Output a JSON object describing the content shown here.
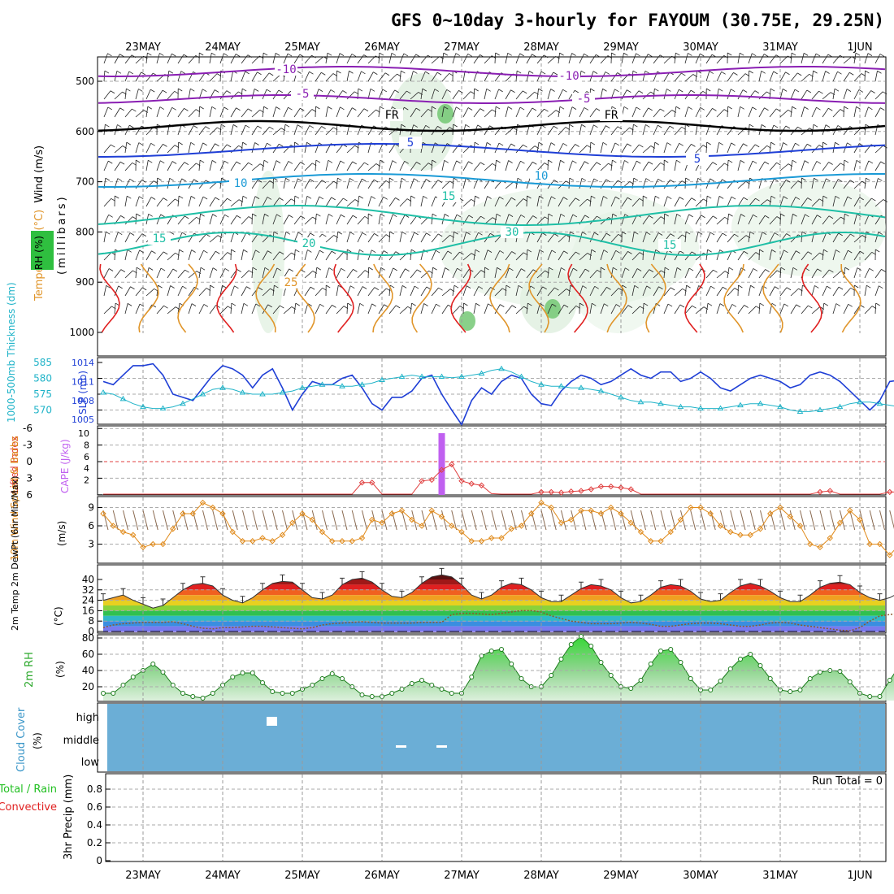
{
  "title": "GFS 0~10day 3-hourly for FAYOUM (30.75E, 29.25N)",
  "dates": [
    "23MAY",
    "24MAY",
    "25MAY",
    "26MAY",
    "27MAY",
    "28MAY",
    "29MAY",
    "30MAY",
    "31MAY",
    "1JUN"
  ],
  "colors": {
    "purple": "#8a1fb3",
    "black": "#000000",
    "blue": "#1f3fd6",
    "sky": "#1a9ad6",
    "teal": "#1fbfa6",
    "green": "#22b35a",
    "orange": "#e0952a",
    "red": "#e02020",
    "rh_light": "#e2f1e2",
    "rh_dark": "#6cc46c",
    "slp": "#1f3fd6",
    "thick": "#1fb3c8",
    "cape": "#c060f0",
    "li": "#e04040",
    "wind10": "#e08a1a",
    "dew": "#8b5a2b",
    "rh2m": "#2ca82c",
    "cloud": "#6baed6",
    "precip_total": "#22c022",
    "precip_conv": "#e02020"
  },
  "panels": {
    "profile": {
      "label_wind": "Wind (m/s)",
      "label_temp": "Temperature (°C)",
      "label_rh": "RH (%)",
      "label_mb": "(millibars)",
      "ticks": [
        "500",
        "600",
        "700",
        "800",
        "900",
        "1000"
      ],
      "contour_labels": [
        "-10",
        "-5",
        "FR",
        "5",
        "10",
        "15",
        "20",
        "25",
        "30"
      ]
    },
    "slp": {
      "label_thick": "1000-500mb Thickness (dm)",
      "label_slp": "SLP (mb)",
      "left_ticks": [
        "585",
        "580",
        "575",
        "570"
      ],
      "right_ticks": [
        "1014",
        "1011",
        "1008",
        "1005"
      ]
    },
    "cape": {
      "label_li": "Lifted Index",
      "label_cape": "CAPE (J/kg)",
      "li_ticks": [
        "-6",
        "-3",
        "0",
        "3",
        "6"
      ],
      "cape_ticks": [
        "10",
        "8",
        "6",
        "4",
        "2"
      ]
    },
    "wind10": {
      "label": "10m Wind Speed & Barbs",
      "unit": "(m/s)",
      "ticks": [
        "9",
        "6",
        "3"
      ]
    },
    "temp": {
      "label": "2m Temp 2m DewPt (6hr Min/Max)",
      "unit": "(°C)",
      "ticks": [
        "40",
        "32",
        "24",
        "16",
        "8",
        "0"
      ]
    },
    "rh": {
      "label": "2m RH",
      "unit": "(%)",
      "ticks": [
        "80",
        "60",
        "40",
        "20"
      ]
    },
    "cloud": {
      "label": "Cloud Cover",
      "unit": "(%)",
      "levels": [
        "high",
        "middle",
        "low"
      ]
    },
    "precip": {
      "label_total": "Total / Rain",
      "label_conv": "Convective",
      "label_precip": "3hr Precip (mm)",
      "ticks": [
        "0.8",
        "0.6",
        "0.4",
        "0.2",
        "0"
      ],
      "run_total": "Run Total = 0"
    }
  },
  "chart_data": [
    {
      "type": "line",
      "panel": "slp",
      "x_unit": "3-hourly steps from 22 May 12Z",
      "series": [
        {
          "name": "SLP (mb)",
          "values": [
            1011,
            1010.5,
            1012,
            1013.5,
            1013.5,
            1013.8,
            1012,
            1009,
            1008.5,
            1008,
            1010,
            1012,
            1013.5,
            1013,
            1012,
            1010,
            1012,
            1013,
            1010,
            1006.5,
            1009,
            1011,
            1010.5,
            1010.5,
            1011.5,
            1012,
            1010,
            1007.5,
            1006.5,
            1008.5,
            1008.5,
            1009.5,
            1011.5,
            1012,
            1009,
            1006.5,
            1004.2,
            1008,
            1010,
            1009,
            1011,
            1012,
            1011.5,
            1009,
            1007.5,
            1007.2,
            1009.5,
            1011,
            1012,
            1011.5,
            1010.5,
            1011,
            1012,
            1013,
            1012,
            1011.5,
            1012.5,
            1012.5,
            1011,
            1011.5,
            1012.5,
            1011.5,
            1010,
            1009.5,
            1010.5,
            1011.5,
            1012,
            1011.5,
            1011,
            1010,
            1010.5,
            1012,
            1012.5,
            1012,
            1011,
            1009.5,
            1008,
            1006.5,
            1008,
            1011,
            1011.2,
            1011.4,
            1012.3
          ]
        },
        {
          "name": "1000-500mb Thickness (dm)",
          "values": [
            575.5,
            575,
            573.5,
            572,
            571,
            570.5,
            570.5,
            571,
            572,
            573.5,
            575,
            576.5,
            577,
            576.5,
            575.5,
            575,
            575,
            575,
            575.5,
            576,
            577,
            577.5,
            578,
            578,
            577.5,
            577.5,
            578,
            578.5,
            579.5,
            580,
            580.5,
            581,
            580.5,
            580.5,
            580.5,
            580.2,
            580.5,
            581,
            581.5,
            582.5,
            583,
            582,
            580.5,
            579,
            578,
            577.5,
            577.5,
            577,
            577,
            576.5,
            576,
            575,
            574,
            573,
            572.5,
            572.5,
            572,
            571.5,
            571,
            571,
            570.5,
            570.5,
            570.5,
            571,
            571.5,
            572,
            572,
            571.5,
            571,
            570,
            569.5,
            569.5,
            570,
            570.5,
            571,
            572,
            572.5,
            572.5,
            572,
            571.5,
            571,
            571.2,
            572
          ]
        }
      ]
    },
    {
      "type": "bar",
      "panel": "cape",
      "series": [
        {
          "name": "CAPE (J/kg)",
          "values": [
            {
              "step": 34,
              "value": 10
            }
          ]
        },
        {
          "name": "Lifted Index",
          "values": [
            6.5,
            6.5,
            6.5,
            6.5,
            6.5,
            6.5,
            6.5,
            6.5,
            6.5,
            6.5,
            6.5,
            6.5,
            6.5,
            6.5,
            6.5,
            6.5,
            6.5,
            6.5,
            6.5,
            6.5,
            6.5,
            6.5,
            6.5,
            6.5,
            6.5,
            6.5,
            3.8,
            3.8,
            6.5,
            6.5,
            6.5,
            6.5,
            3.5,
            3.3,
            1.5,
            0.5,
            3.5,
            4,
            4.3,
            5.8,
            6,
            6.3,
            6.5,
            6.5,
            5.5,
            5.5,
            5.6,
            5.4,
            5.3,
            5,
            4.5,
            4.5,
            4.7,
            5,
            6.5,
            6.5,
            6.5,
            6.5,
            6.5,
            6.5,
            6.5,
            6.5,
            6.5,
            6.5,
            6.5,
            6.5,
            6.5,
            6.5,
            6.5,
            6.5,
            6.5,
            6.5,
            5.5,
            5.3,
            6,
            6.5,
            6.5,
            6.5,
            6.5,
            5.5,
            5.5,
            5,
            2.5
          ]
        }
      ]
    },
    {
      "type": "line",
      "panel": "wind10",
      "series": [
        {
          "name": "10m Wind Speed (m/s)",
          "values": [
            8,
            6,
            5,
            4.5,
            2.5,
            3,
            3,
            5.5,
            8,
            8,
            9.8,
            9,
            8,
            5,
            3.5,
            3.5,
            4,
            3.5,
            4.5,
            6.5,
            8,
            7,
            5,
            3.5,
            3.5,
            3.5,
            4,
            7,
            6.5,
            8,
            8.5,
            7,
            6,
            8.5,
            7.5,
            6,
            5,
            3.5,
            3.5,
            4,
            4,
            5.5,
            6,
            8,
            9.8,
            9,
            6.5,
            7,
            8.5,
            8.5,
            8,
            9,
            8,
            6.5,
            5,
            3.5,
            3.5,
            5,
            7,
            9,
            9,
            8,
            6,
            5,
            4.5,
            4.5,
            5.5,
            8,
            9,
            7.5,
            6,
            3,
            2.5,
            4,
            6.5,
            8.5,
            7,
            3,
            3,
            1.2,
            3,
            4.5,
            5.5
          ]
        }
      ]
    },
    {
      "type": "area",
      "panel": "temp",
      "series": [
        {
          "name": "2m Temp (°C)",
          "values": [
            24,
            26,
            28,
            24,
            21,
            18,
            20,
            26,
            32,
            36,
            37,
            35,
            28,
            24,
            22,
            26,
            32,
            37,
            38.5,
            38,
            32,
            26,
            25,
            28,
            36,
            40,
            41,
            38,
            32,
            27,
            26,
            30,
            37,
            42,
            43.5,
            42,
            36,
            28,
            25,
            28,
            34,
            37,
            36,
            32,
            26,
            23,
            23,
            28,
            33,
            36,
            35,
            32,
            26,
            22,
            23,
            28,
            34,
            36,
            35,
            31,
            25,
            23,
            24,
            30,
            35,
            37,
            35,
            31,
            26,
            23,
            23,
            28,
            34,
            37,
            38,
            36,
            30,
            26,
            24,
            26,
            30,
            31,
            29
          ]
        },
        {
          "name": "2m DewPt (°C)",
          "values": [
            3,
            5,
            6,
            6.5,
            7,
            7,
            7,
            7.5,
            6,
            4,
            2.5,
            2,
            3,
            3,
            3.5,
            4,
            4,
            3.5,
            3,
            2.5,
            2,
            3,
            5,
            6,
            6.5,
            7,
            7.5,
            7,
            6.5,
            6.5,
            6.5,
            6.5,
            7,
            7,
            7,
            13,
            14,
            14,
            13.5,
            13,
            14,
            15,
            16,
            16,
            15,
            12,
            10,
            8,
            7,
            6,
            6,
            6,
            6.5,
            7,
            6.5,
            5.5,
            4,
            4,
            5,
            6,
            6.5,
            6.5,
            6,
            5,
            4,
            4,
            5,
            6.5,
            7,
            6.5,
            5,
            4,
            3,
            2,
            1,
            0.5,
            3,
            8,
            12,
            13,
            14,
            14,
            13
          ]
        }
      ]
    },
    {
      "type": "area",
      "panel": "rh",
      "series": [
        {
          "name": "2m RH (%)",
          "values": [
            12,
            12,
            22,
            32,
            40,
            48,
            38,
            22,
            12,
            8,
            6,
            12,
            22,
            32,
            37,
            37,
            25,
            14,
            12,
            12,
            17,
            22,
            30,
            36,
            30,
            20,
            10,
            8,
            8,
            12,
            17,
            24,
            28,
            22,
            17,
            12,
            12,
            32,
            58,
            64,
            66,
            48,
            30,
            20,
            20,
            34,
            54,
            72,
            82,
            70,
            50,
            34,
            20,
            18,
            28,
            48,
            64,
            66,
            50,
            30,
            16,
            16,
            27,
            42,
            54,
            60,
            46,
            30,
            16,
            14,
            16,
            30,
            38,
            40,
            39,
            26,
            12,
            8,
            8,
            28,
            46,
            66,
            40
          ]
        }
      ]
    },
    {
      "type": "bar",
      "panel": "precip",
      "series": [
        {
          "name": "Total / Rain",
          "values": []
        },
        {
          "name": "Convective",
          "values": []
        }
      ]
    }
  ]
}
